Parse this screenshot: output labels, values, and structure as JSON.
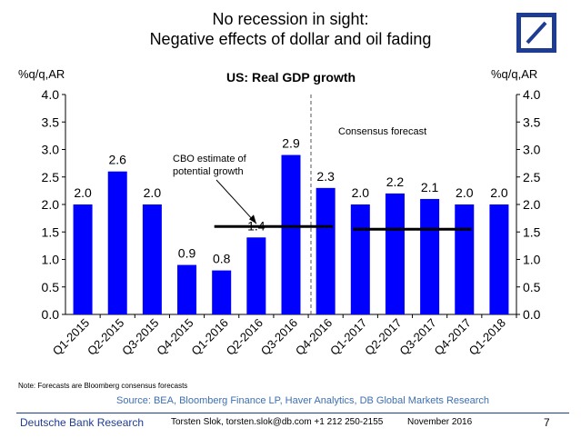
{
  "header": {
    "title_line1": "No recession in sight:",
    "title_line2": "Negative effects of dollar and oil fading"
  },
  "logo": {
    "icon": "deutsche-bank-logo",
    "color": "#1f3c93"
  },
  "chart_data": {
    "type": "bar",
    "title": "US: Real GDP growth",
    "ylabel_left": "%q/q,AR",
    "ylabel_right": "%q/q,AR",
    "ylim": [
      0,
      4
    ],
    "yticks": [
      "0.0",
      "0.5",
      "1.0",
      "1.5",
      "2.0",
      "2.5",
      "3.0",
      "3.5",
      "4.0"
    ],
    "bar_color": "#0000ff",
    "categories": [
      "Q1-2015",
      "Q2-2015",
      "Q3-2015",
      "Q4-2015",
      "Q1-2016",
      "Q2-2016",
      "Q3-2016",
      "Q4-2016",
      "Q1-2017",
      "Q2-2017",
      "Q3-2017",
      "Q4-2017",
      "Q1-2018"
    ],
    "values": [
      2.0,
      2.6,
      2.0,
      0.9,
      0.8,
      1.4,
      2.9,
      2.3,
      2.0,
      2.2,
      2.1,
      2.0,
      2.0
    ],
    "value_labels": [
      "2.0",
      "2.6",
      "2.0",
      "0.9",
      "0.8",
      "1.4",
      "2.9",
      "2.3",
      "2.0",
      "2.2",
      "2.1",
      "2.0",
      "2.0"
    ],
    "forecast_label": "Consensus forecast",
    "forecast_start_index": 7,
    "cbo_label_line1": "CBO estimate of",
    "cbo_label_line2": "potential growth",
    "cbo_segments": [
      {
        "from_index": 4,
        "to_index": 7,
        "value": 1.6
      },
      {
        "from_index": 8,
        "to_index": 11,
        "value": 1.55
      }
    ],
    "grid": false
  },
  "note": "Note: Forecasts are Bloomberg consensus forecasts",
  "source": "Source: BEA, Bloomberg Finance LP, Haver Analytics, DB Global Markets Research",
  "footer": {
    "brand": "Deutsche Bank Research",
    "author": "Torsten Slok, torsten.slok@db.com  +1 212 250-2155",
    "date": "November 2016",
    "page": "7"
  }
}
